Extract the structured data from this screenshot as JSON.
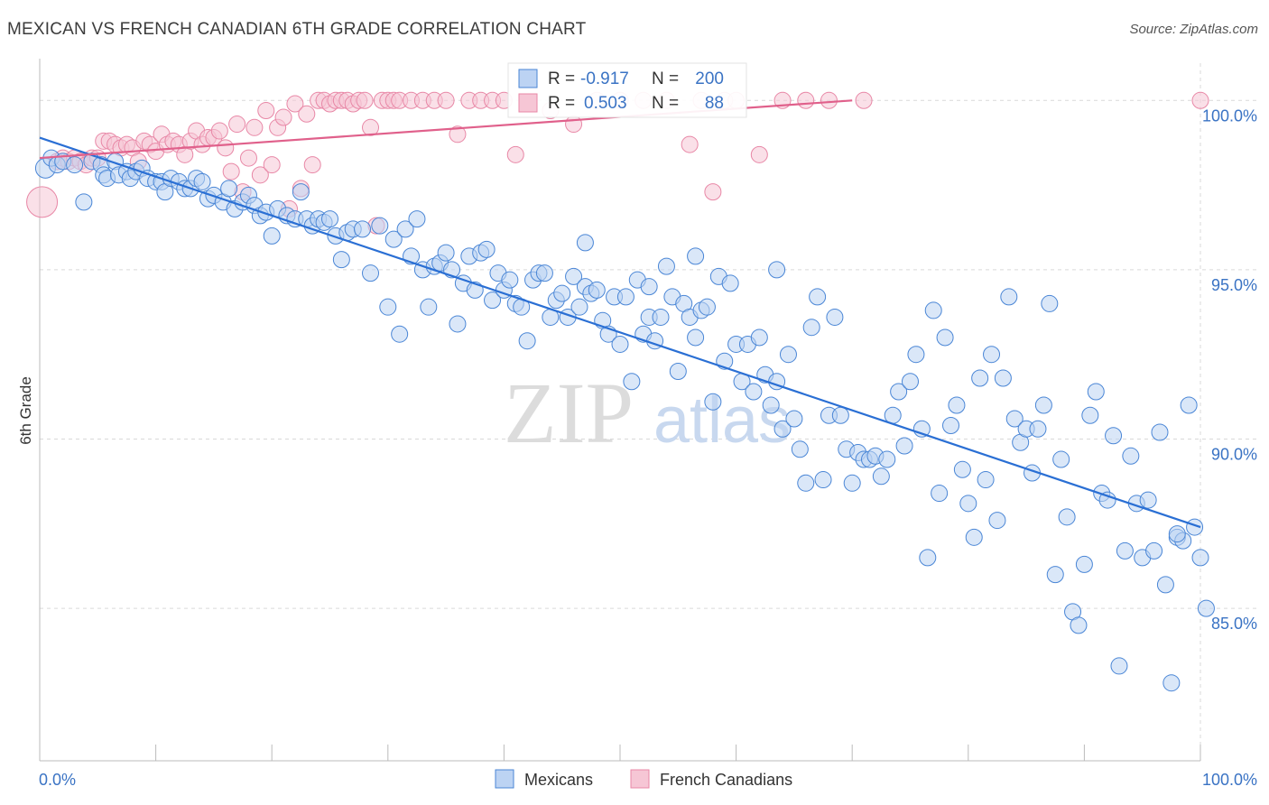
{
  "title": "MEXICAN VS FRENCH CANADIAN 6TH GRADE CORRELATION CHART",
  "source": "Source: ZipAtlas.com",
  "watermark": {
    "zip": "ZIP",
    "atlas": "atlas"
  },
  "colors": {
    "blue": "#4a86d6",
    "blue_fill": "#bcd3f3",
    "blue_line": "#2a6fd4",
    "pink": "#e887a6",
    "pink_fill": "#f6c6d5",
    "pink_line": "#e0608b",
    "tick_blue": "#3a73c4",
    "grid": "#d9d9d9"
  },
  "legend_box": {
    "rows": [
      {
        "r_label": "R =",
        "r_value": "-0.917",
        "n_label": "N =",
        "n_value": "200"
      },
      {
        "r_label": "R =",
        "r_value": "0.503",
        "n_label": "N =",
        "n_value": "88"
      }
    ]
  },
  "chart_data": {
    "type": "scatter",
    "xlabel": "",
    "ylabel": "6th Grade",
    "xlim": [
      0,
      100
    ],
    "ylim": [
      80.5,
      101.5
    ],
    "x_tick_labels": [
      {
        "value": 0,
        "label": "0.0%"
      },
      {
        "value": 100,
        "label": "100.0%"
      }
    ],
    "y_tick_labels": [
      {
        "value": 100,
        "label": "100.0%"
      },
      {
        "value": 95,
        "label": "95.0%"
      },
      {
        "value": 90,
        "label": "90.0%"
      },
      {
        "value": 85,
        "label": "85.0%"
      }
    ],
    "legend_position": "bottom",
    "grid": true,
    "series": [
      {
        "name": "Mexicans",
        "r": -0.917,
        "n": 200,
        "trend": {
          "x": [
            0,
            100
          ],
          "y": [
            98.9,
            87.4
          ]
        },
        "points": [
          [
            0.5,
            98.0
          ],
          [
            1.0,
            98.3
          ],
          [
            1.5,
            98.1
          ],
          [
            2.0,
            98.2
          ],
          [
            3.0,
            98.1
          ],
          [
            3.8,
            97.0
          ],
          [
            4.5,
            98.2
          ],
          [
            5.3,
            98.1
          ],
          [
            5.5,
            97.8
          ],
          [
            5.8,
            97.7
          ],
          [
            6.5,
            98.2
          ],
          [
            6.8,
            97.8
          ],
          [
            7.5,
            97.9
          ],
          [
            7.8,
            97.7
          ],
          [
            8.3,
            97.9
          ],
          [
            8.8,
            98.0
          ],
          [
            9.3,
            97.7
          ],
          [
            10.0,
            97.6
          ],
          [
            10.5,
            97.6
          ],
          [
            10.8,
            97.3
          ],
          [
            11.3,
            97.7
          ],
          [
            12.0,
            97.6
          ],
          [
            12.5,
            97.4
          ],
          [
            13.0,
            97.4
          ],
          [
            13.5,
            97.7
          ],
          [
            14.0,
            97.6
          ],
          [
            14.5,
            97.1
          ],
          [
            15.0,
            97.2
          ],
          [
            15.8,
            97.0
          ],
          [
            16.3,
            97.4
          ],
          [
            16.8,
            96.8
          ],
          [
            17.5,
            97.0
          ],
          [
            18.0,
            97.2
          ],
          [
            18.5,
            96.9
          ],
          [
            19.0,
            96.6
          ],
          [
            19.5,
            96.7
          ],
          [
            20.0,
            96.0
          ],
          [
            20.5,
            96.8
          ],
          [
            21.3,
            96.6
          ],
          [
            22.0,
            96.5
          ],
          [
            22.5,
            97.3
          ],
          [
            23.0,
            96.5
          ],
          [
            23.5,
            96.3
          ],
          [
            24.0,
            96.5
          ],
          [
            24.5,
            96.4
          ],
          [
            25.0,
            96.5
          ],
          [
            25.5,
            96.0
          ],
          [
            26.0,
            95.3
          ],
          [
            26.5,
            96.1
          ],
          [
            27.0,
            96.2
          ],
          [
            27.8,
            96.2
          ],
          [
            28.5,
            94.9
          ],
          [
            29.3,
            96.3
          ],
          [
            30.0,
            93.9
          ],
          [
            30.5,
            95.9
          ],
          [
            31.0,
            93.1
          ],
          [
            31.5,
            96.2
          ],
          [
            32.0,
            95.4
          ],
          [
            32.5,
            96.5
          ],
          [
            33.0,
            95.0
          ],
          [
            33.5,
            93.9
          ],
          [
            34.0,
            95.1
          ],
          [
            34.5,
            95.2
          ],
          [
            35.0,
            95.5
          ],
          [
            35.5,
            95.0
          ],
          [
            36.0,
            93.4
          ],
          [
            36.5,
            94.6
          ],
          [
            37.0,
            95.4
          ],
          [
            37.5,
            94.4
          ],
          [
            38.0,
            95.5
          ],
          [
            38.5,
            95.6
          ],
          [
            39.0,
            94.1
          ],
          [
            39.5,
            94.9
          ],
          [
            40.0,
            94.4
          ],
          [
            40.5,
            94.7
          ],
          [
            41.0,
            94.0
          ],
          [
            41.5,
            93.9
          ],
          [
            42.0,
            92.9
          ],
          [
            42.5,
            94.7
          ],
          [
            43.0,
            94.9
          ],
          [
            43.5,
            94.9
          ],
          [
            44.0,
            93.6
          ],
          [
            44.5,
            94.1
          ],
          [
            45.0,
            94.3
          ],
          [
            45.5,
            93.6
          ],
          [
            46.0,
            94.8
          ],
          [
            46.5,
            93.9
          ],
          [
            47.0,
            94.5
          ],
          [
            47.5,
            94.3
          ],
          [
            48.0,
            94.4
          ],
          [
            48.5,
            93.5
          ],
          [
            49.0,
            93.1
          ],
          [
            49.5,
            94.2
          ],
          [
            50.0,
            92.8
          ],
          [
            50.5,
            94.2
          ],
          [
            51.0,
            91.7
          ],
          [
            51.5,
            94.7
          ],
          [
            52.0,
            93.1
          ],
          [
            52.5,
            93.6
          ],
          [
            53.0,
            92.9
          ],
          [
            53.5,
            93.6
          ],
          [
            54.0,
            95.1
          ],
          [
            54.5,
            94.2
          ],
          [
            55.0,
            92.0
          ],
          [
            55.5,
            94.0
          ],
          [
            56.0,
            93.6
          ],
          [
            56.5,
            95.4
          ],
          [
            57.0,
            93.8
          ],
          [
            57.5,
            93.9
          ],
          [
            58.0,
            91.1
          ],
          [
            58.5,
            94.8
          ],
          [
            59.0,
            92.3
          ],
          [
            59.5,
            94.6
          ],
          [
            60.0,
            92.8
          ],
          [
            60.5,
            91.7
          ],
          [
            61.0,
            92.8
          ],
          [
            61.5,
            91.4
          ],
          [
            62.0,
            93.0
          ],
          [
            62.5,
            91.9
          ],
          [
            63.0,
            91.0
          ],
          [
            63.5,
            91.7
          ],
          [
            64.0,
            90.3
          ],
          [
            64.5,
            92.5
          ],
          [
            65.0,
            90.6
          ],
          [
            65.5,
            89.7
          ],
          [
            66.0,
            88.7
          ],
          [
            66.5,
            93.3
          ],
          [
            67.0,
            94.2
          ],
          [
            67.5,
            88.8
          ],
          [
            68.0,
            90.7
          ],
          [
            68.5,
            93.6
          ],
          [
            69.0,
            90.7
          ],
          [
            69.5,
            89.7
          ],
          [
            70.0,
            88.7
          ],
          [
            70.5,
            89.6
          ],
          [
            71.0,
            89.4
          ],
          [
            71.5,
            89.4
          ],
          [
            72.0,
            89.5
          ],
          [
            72.5,
            88.9
          ],
          [
            73.0,
            89.4
          ],
          [
            73.5,
            90.7
          ],
          [
            74.0,
            91.4
          ],
          [
            74.5,
            89.8
          ],
          [
            75.0,
            91.7
          ],
          [
            75.5,
            92.5
          ],
          [
            76.0,
            90.3
          ],
          [
            76.5,
            86.5
          ],
          [
            77.0,
            93.8
          ],
          [
            77.5,
            88.4
          ],
          [
            78.0,
            93.0
          ],
          [
            78.5,
            90.4
          ],
          [
            79.0,
            91.0
          ],
          [
            79.5,
            89.1
          ],
          [
            80.0,
            88.1
          ],
          [
            80.5,
            87.1
          ],
          [
            81.0,
            91.8
          ],
          [
            81.5,
            88.8
          ],
          [
            82.0,
            92.5
          ],
          [
            82.5,
            87.6
          ],
          [
            83.0,
            91.8
          ],
          [
            83.5,
            94.2
          ],
          [
            84.0,
            90.6
          ],
          [
            84.5,
            89.9
          ],
          [
            85.0,
            90.3
          ],
          [
            85.5,
            89.0
          ],
          [
            86.0,
            90.3
          ],
          [
            86.5,
            91.0
          ],
          [
            87.0,
            94.0
          ],
          [
            87.5,
            86.0
          ],
          [
            88.0,
            89.4
          ],
          [
            88.5,
            87.7
          ],
          [
            89.0,
            84.9
          ],
          [
            89.5,
            84.5
          ],
          [
            90.0,
            86.3
          ],
          [
            90.5,
            90.7
          ],
          [
            91.0,
            91.4
          ],
          [
            91.5,
            88.4
          ],
          [
            92.0,
            88.2
          ],
          [
            92.5,
            90.1
          ],
          [
            93.0,
            83.3
          ],
          [
            93.5,
            86.7
          ],
          [
            94.0,
            89.5
          ],
          [
            94.5,
            88.1
          ],
          [
            95.0,
            86.5
          ],
          [
            95.5,
            88.2
          ],
          [
            96.0,
            86.7
          ],
          [
            96.5,
            90.2
          ],
          [
            97.0,
            85.7
          ],
          [
            97.5,
            82.8
          ],
          [
            98.0,
            87.1
          ],
          [
            98.5,
            87.0
          ],
          [
            99.0,
            91.0
          ],
          [
            99.5,
            87.4
          ],
          [
            100.0,
            86.5
          ],
          [
            100.5,
            85.0
          ],
          [
            98.0,
            87.2
          ],
          [
            63.5,
            95.0
          ],
          [
            47.0,
            95.8
          ],
          [
            52.5,
            94.5
          ],
          [
            56.5,
            93.0
          ]
        ]
      },
      {
        "name": "French Canadians",
        "r": 0.503,
        "n": 88,
        "trend": {
          "x": [
            0,
            70
          ],
          "y": [
            98.3,
            100.0
          ]
        },
        "points": [
          [
            0.2,
            97.0
          ],
          [
            1.5,
            98.2
          ],
          [
            2.0,
            98.3
          ],
          [
            2.5,
            98.2
          ],
          [
            3.0,
            98.3
          ],
          [
            3.5,
            98.2
          ],
          [
            4.0,
            98.1
          ],
          [
            4.5,
            98.3
          ],
          [
            5.0,
            98.3
          ],
          [
            5.5,
            98.8
          ],
          [
            6.0,
            98.8
          ],
          [
            6.5,
            98.7
          ],
          [
            7.0,
            98.6
          ],
          [
            7.5,
            98.7
          ],
          [
            8.0,
            98.6
          ],
          [
            8.5,
            98.2
          ],
          [
            9.0,
            98.8
          ],
          [
            9.5,
            98.7
          ],
          [
            10.0,
            98.5
          ],
          [
            10.5,
            99.0
          ],
          [
            11.0,
            98.7
          ],
          [
            11.5,
            98.8
          ],
          [
            12.0,
            98.7
          ],
          [
            12.5,
            98.4
          ],
          [
            13.0,
            98.8
          ],
          [
            13.5,
            99.1
          ],
          [
            14.0,
            98.7
          ],
          [
            14.5,
            98.9
          ],
          [
            15.0,
            98.9
          ],
          [
            15.5,
            99.1
          ],
          [
            16.0,
            98.6
          ],
          [
            16.5,
            97.9
          ],
          [
            17.0,
            99.3
          ],
          [
            17.5,
            97.3
          ],
          [
            18.0,
            98.3
          ],
          [
            18.5,
            99.2
          ],
          [
            19.0,
            97.8
          ],
          [
            19.5,
            99.7
          ],
          [
            20.0,
            98.1
          ],
          [
            20.5,
            99.2
          ],
          [
            21.0,
            99.5
          ],
          [
            21.5,
            96.8
          ],
          [
            22.0,
            99.9
          ],
          [
            22.5,
            97.4
          ],
          [
            23.0,
            99.6
          ],
          [
            23.5,
            98.1
          ],
          [
            24.0,
            100.0
          ],
          [
            24.5,
            100.0
          ],
          [
            25.0,
            99.9
          ],
          [
            25.5,
            100.0
          ],
          [
            26.0,
            100.0
          ],
          [
            26.5,
            100.0
          ],
          [
            27.0,
            99.9
          ],
          [
            27.5,
            100.0
          ],
          [
            28.0,
            100.0
          ],
          [
            28.5,
            99.2
          ],
          [
            29.0,
            96.3
          ],
          [
            29.5,
            100.0
          ],
          [
            30.0,
            100.0
          ],
          [
            30.5,
            100.0
          ],
          [
            31.0,
            100.0
          ],
          [
            32.0,
            100.0
          ],
          [
            33.0,
            100.0
          ],
          [
            34.0,
            100.0
          ],
          [
            35.0,
            100.0
          ],
          [
            36.0,
            99.0
          ],
          [
            37.0,
            100.0
          ],
          [
            38.0,
            100.0
          ],
          [
            39.0,
            100.0
          ],
          [
            40.0,
            100.0
          ],
          [
            41.0,
            98.4
          ],
          [
            44.0,
            99.7
          ],
          [
            46.0,
            99.3
          ],
          [
            48.0,
            100.0
          ],
          [
            50.0,
            100.0
          ],
          [
            52.0,
            100.0
          ],
          [
            54.0,
            100.0
          ],
          [
            56.0,
            98.7
          ],
          [
            57.0,
            100.0
          ],
          [
            58.0,
            97.3
          ],
          [
            59.0,
            100.0
          ],
          [
            60.0,
            100.0
          ],
          [
            62.0,
            98.4
          ],
          [
            64.0,
            100.0
          ],
          [
            66.0,
            100.0
          ],
          [
            68.0,
            100.0
          ],
          [
            71.0,
            100.0
          ],
          [
            100.0,
            100.0
          ]
        ]
      }
    ]
  }
}
